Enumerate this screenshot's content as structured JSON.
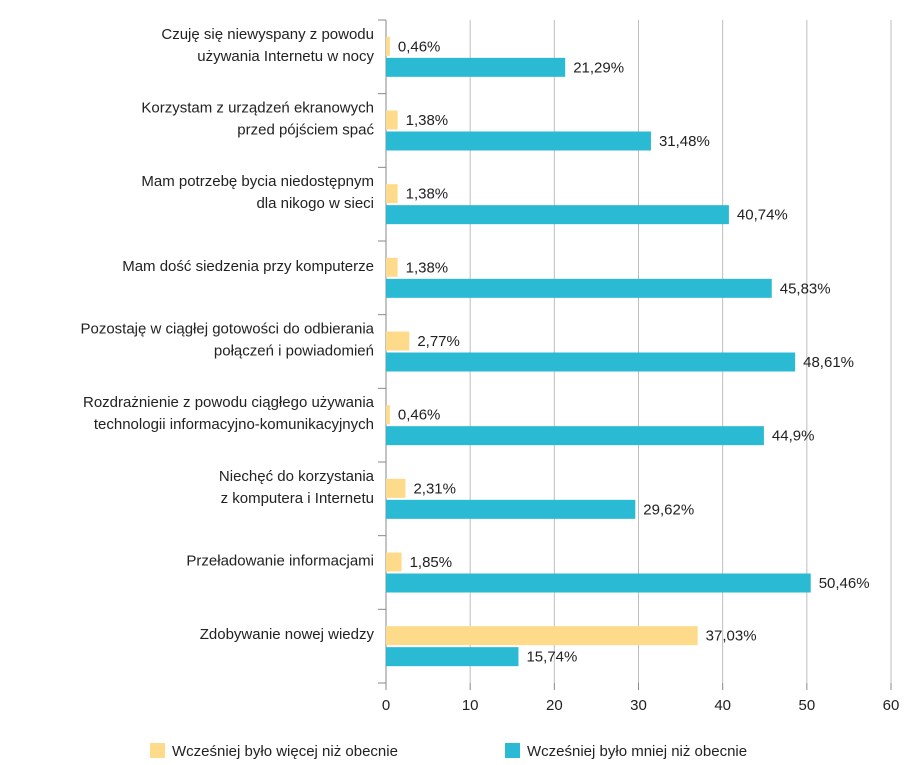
{
  "chart_data": {
    "type": "barh",
    "categories": [
      [
        "Czuję się niewyspany z powodu",
        "używania Internetu w nocy"
      ],
      [
        "Korzystam z urządzeń ekranowych",
        "przed pójściem spać"
      ],
      [
        "Mam potrzebę bycia niedostępnym",
        "dla nikogo w sieci"
      ],
      [
        "Mam dość siedzenia przy komputerze"
      ],
      [
        "Pozostaję w ciągłej gotowości do odbierania",
        "połączeń i powiadomień"
      ],
      [
        "Rozdrażnienie z powodu ciągłego używania",
        "technologii informacyjno-komunikacyjnych"
      ],
      [
        "Niechęć do korzystania",
        "z komputera i Internetu"
      ],
      [
        "Przeładowanie informacjami"
      ],
      [
        "Zdobywanie nowej wiedzy"
      ]
    ],
    "series": [
      {
        "name": "Wcześniej było więcej niż obecnie",
        "color": "#fedb8b",
        "values": [
          0.46,
          1.38,
          1.38,
          1.38,
          2.77,
          0.46,
          2.31,
          1.85,
          37.03
        ],
        "value_labels": [
          "0,46%",
          "1,38%",
          "1,38%",
          "1,38%",
          "2,77%",
          "0,46%",
          "2,31%",
          "1,85%",
          "37,03%"
        ]
      },
      {
        "name": "Wcześniej było mniej niż obecnie",
        "color": "#2bbad3",
        "values": [
          21.29,
          31.48,
          40.74,
          45.83,
          48.61,
          44.9,
          29.62,
          50.46,
          15.74
        ],
        "value_labels": [
          "21,29%",
          "31,48%",
          "40,74%",
          "45,83%",
          "48,61%",
          "44,9%",
          "29,62%",
          "50,46%",
          "15,74%"
        ]
      }
    ],
    "xlim": [
      0,
      60
    ],
    "xticks": [
      0,
      10,
      20,
      30,
      40,
      50,
      60
    ],
    "grid": true,
    "legend": "bottom"
  }
}
